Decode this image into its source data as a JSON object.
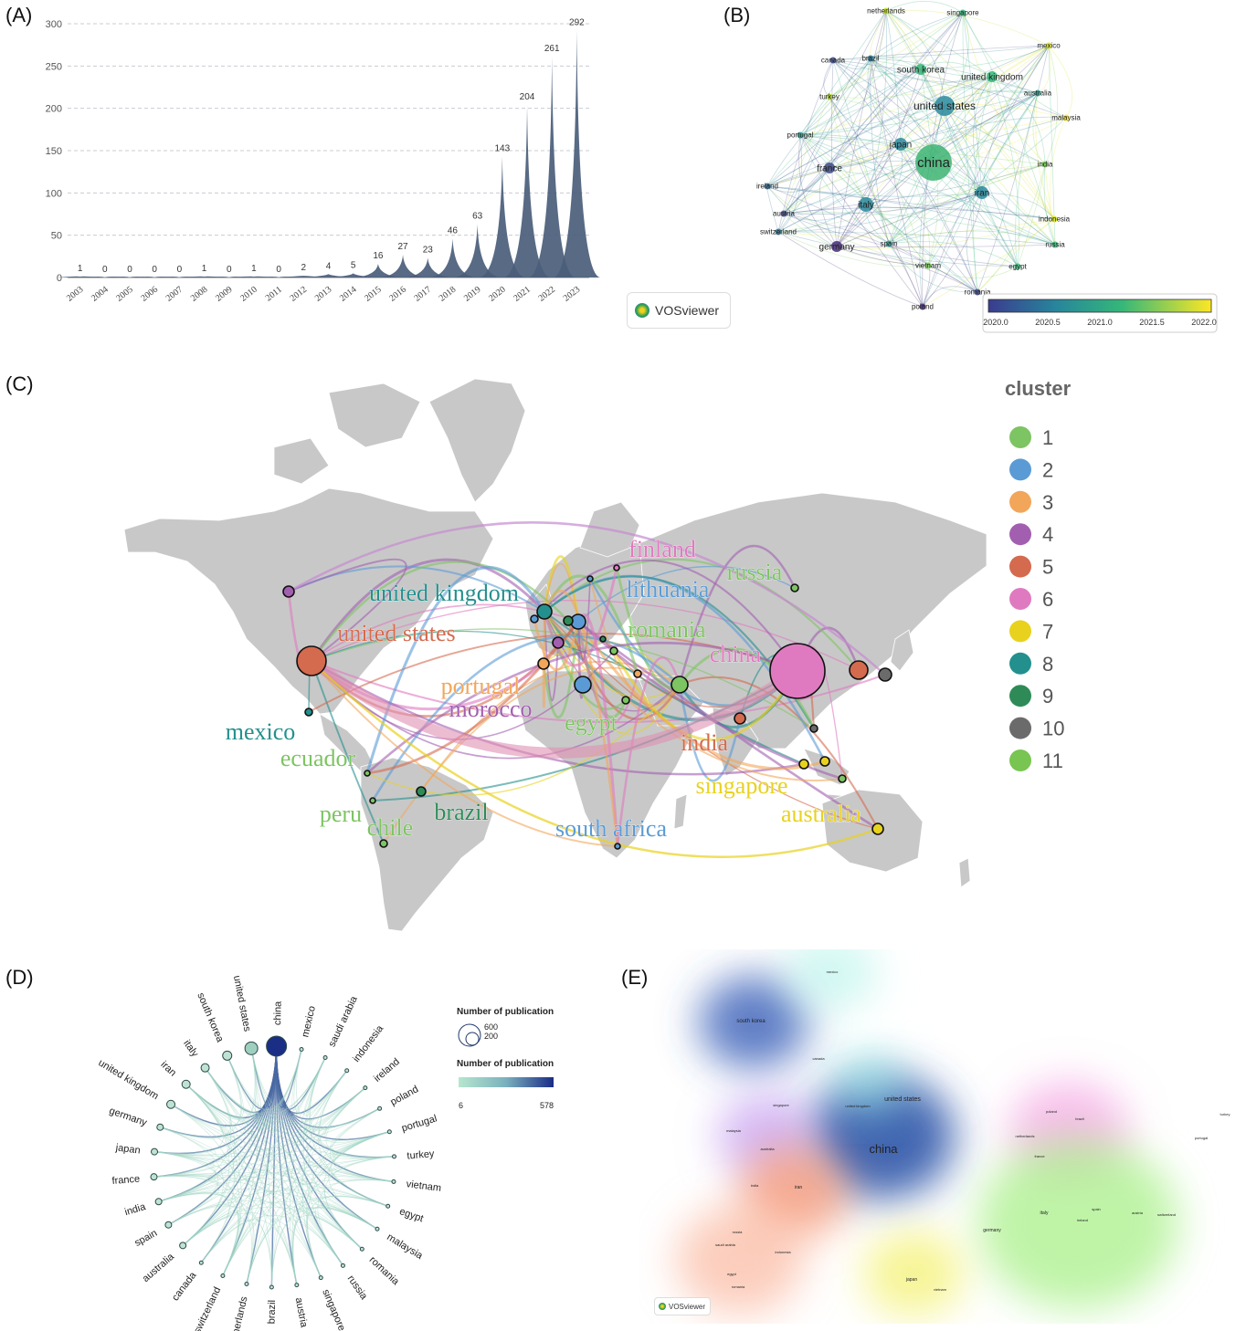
{
  "panels": {
    "a": "(A)",
    "b": "(B)",
    "c": "(C)",
    "d": "(D)",
    "e": "(E)"
  },
  "vosviewer_logo": "VOSviewer",
  "chart_data": [
    {
      "type": "area",
      "panel": "A",
      "title": "",
      "xlabel": "",
      "ylabel": "",
      "categories": [
        "2003",
        "2004",
        "2005",
        "2006",
        "2007",
        "2008",
        "2009",
        "2010",
        "2011",
        "2012",
        "2013",
        "2014",
        "2015",
        "2016",
        "2017",
        "2018",
        "2019",
        "2020",
        "2021",
        "2022",
        "2023"
      ],
      "values": [
        1,
        0,
        0,
        0,
        0,
        1,
        0,
        1,
        0,
        2,
        4,
        5,
        16,
        27,
        23,
        46,
        63,
        143,
        204,
        261,
        292
      ],
      "ylim": [
        0,
        300
      ],
      "yticks": [
        0,
        50,
        100,
        150,
        200,
        250,
        300
      ],
      "grid": "horizontal dashed",
      "color": "#4a5d79"
    },
    {
      "type": "network",
      "panel": "B",
      "nodes": [
        "netherlands",
        "singapore",
        "mexico",
        "canada",
        "brazil",
        "south korea",
        "united kingdom",
        "turkey",
        "united states",
        "australia",
        "malaysia",
        "portugal",
        "japan",
        "china",
        "india",
        "france",
        "ireland",
        "italy",
        "iran",
        "indonesia",
        "austria",
        "switzerland",
        "germany",
        "spain",
        "russia",
        "vietnam",
        "egypt",
        "romania",
        "poland"
      ],
      "colorbar_ticks": [
        "2020.0",
        "2020.5",
        "2021.0",
        "2021.5",
        "2022.0"
      ]
    },
    {
      "type": "map",
      "panel": "C",
      "legend_title": "cluster",
      "clusters": [
        {
          "label": "1",
          "color": "#7dc462"
        },
        {
          "label": "2",
          "color": "#5b9bd5"
        },
        {
          "label": "3",
          "color": "#f2a65a"
        },
        {
          "label": "4",
          "color": "#a25fb0"
        },
        {
          "label": "5",
          "color": "#d46a4e"
        },
        {
          "label": "6",
          "color": "#e07ac0"
        },
        {
          "label": "7",
          "color": "#e8d21d"
        },
        {
          "label": "8",
          "color": "#23908e"
        },
        {
          "label": "9",
          "color": "#2e8b57"
        },
        {
          "label": "10",
          "color": "#6b6b6b"
        },
        {
          "label": "11",
          "color": "#78c552"
        }
      ],
      "country_labels": [
        {
          "name": "finland",
          "color": "#e07ac0"
        },
        {
          "name": "russia",
          "color": "#7dc462"
        },
        {
          "name": "united  kingdom",
          "color": "#23908e"
        },
        {
          "name": "lithuania",
          "color": "#5b9bd5"
        },
        {
          "name": "united  states",
          "color": "#d46a4e"
        },
        {
          "name": "romania",
          "color": "#7dc462"
        },
        {
          "name": "china",
          "color": "#e07ac0"
        },
        {
          "name": "portugal",
          "color": "#f2a65a"
        },
        {
          "name": "morocco",
          "color": "#a25fb0"
        },
        {
          "name": "mexico",
          "color": "#23908e"
        },
        {
          "name": "egypt",
          "color": "#7dc462"
        },
        {
          "name": "ecuador",
          "color": "#7dc462"
        },
        {
          "name": "india",
          "color": "#d46a4e"
        },
        {
          "name": "singapore",
          "color": "#e8d21d"
        },
        {
          "name": "brazil",
          "color": "#2e8b57"
        },
        {
          "name": "peru",
          "color": "#7dc462"
        },
        {
          "name": "chile",
          "color": "#7dc462"
        },
        {
          "name": "south  africa",
          "color": "#5b9bd5"
        },
        {
          "name": "australia",
          "color": "#e8d21d"
        }
      ]
    },
    {
      "type": "chord",
      "panel": "D",
      "nodes": [
        "china",
        "mexico",
        "saudi arabia",
        "indonesia",
        "ireland",
        "poland",
        "portugal",
        "turkey",
        "vietnam",
        "egypt",
        "malaysia",
        "romania",
        "russia",
        "singapore",
        "austria",
        "brazil",
        "netherlands",
        "switzerland",
        "canada",
        "australia",
        "spain",
        "india",
        "france",
        "japan",
        "germany",
        "united kingdom",
        "iran",
        "italy",
        "south korea",
        "united states"
      ],
      "size_legend_title": "Number of publication",
      "size_legend_values": [
        "600",
        "200"
      ],
      "color_legend_title": "Number of publication",
      "color_min": "6",
      "color_max": "578"
    },
    {
      "type": "density",
      "panel": "E",
      "labels": [
        "mexico",
        "south korea",
        "canada",
        "united states",
        "singapore",
        "united kingdom",
        "china",
        "malaysia",
        "australia",
        "poland",
        "brazil",
        "netherlands",
        "france",
        "turkey",
        "portugal",
        "india",
        "iran",
        "italy",
        "spain",
        "austria",
        "switzerland",
        "ireland",
        "germany",
        "russia",
        "saudi arabia",
        "indonesia",
        "egypt",
        "romania",
        "japan",
        "vietnam"
      ]
    }
  ]
}
